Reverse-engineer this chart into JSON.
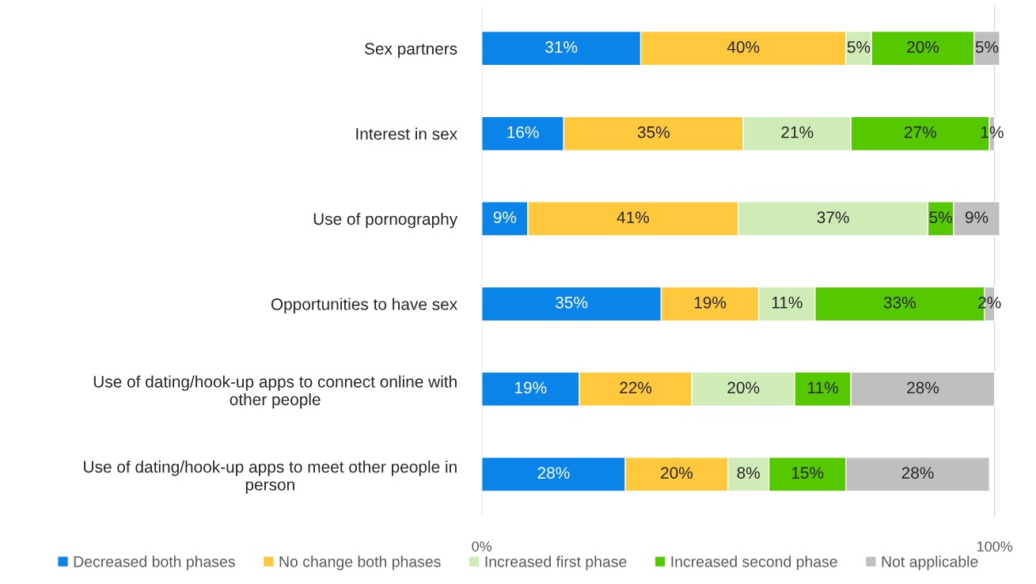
{
  "chart_data": {
    "type": "bar",
    "orientation": "horizontal",
    "stacked": true,
    "categories": [
      "Sex partners",
      "Interest in sex",
      "Use of pornography",
      "Opportunities to have sex",
      "Use of dating/hook-up apps to connect online with\nother people",
      "Use of dating/hook-up apps to meet other people in\nperson"
    ],
    "series": [
      {
        "name": "Decreased both phases",
        "color": "#0a84e8",
        "values": [
          31,
          16,
          9,
          35,
          19,
          28
        ],
        "value_labels": [
          "31%",
          "16%",
          "9%",
          "35%",
          "19%",
          "28%"
        ]
      },
      {
        "name": "No change both phases",
        "color": "#ffc83d",
        "values": [
          40,
          35,
          41,
          19,
          22,
          20
        ],
        "value_labels": [
          "40%",
          "35%",
          "41%",
          "19%",
          "22%",
          "20%"
        ]
      },
      {
        "name": "Increased first phase",
        "color": "#cfecb6",
        "values": [
          5,
          21,
          37,
          11,
          20,
          8
        ],
        "value_labels": [
          "5%",
          "21%",
          "37%",
          "11%",
          "20%",
          "8%"
        ]
      },
      {
        "name": "Increased second phase",
        "color": "#56c800",
        "values": [
          20,
          27,
          5,
          33,
          11,
          15
        ],
        "value_labels": [
          "20%",
          "27%",
          "5%",
          "33%",
          "11%",
          "15%"
        ]
      },
      {
        "name": "Not applicable",
        "color": "#bfbfbf",
        "values": [
          5,
          1,
          9,
          2,
          28,
          28
        ],
        "value_labels": [
          "5%",
          "1%",
          "9%",
          "2%",
          "28%",
          "28%"
        ]
      }
    ],
    "xlim": [
      0,
      101
    ],
    "xticks": [
      {
        "value": 0,
        "label": "0%"
      },
      {
        "value": 100,
        "label": "100%"
      }
    ],
    "grid": "x",
    "legend": "bottom"
  }
}
